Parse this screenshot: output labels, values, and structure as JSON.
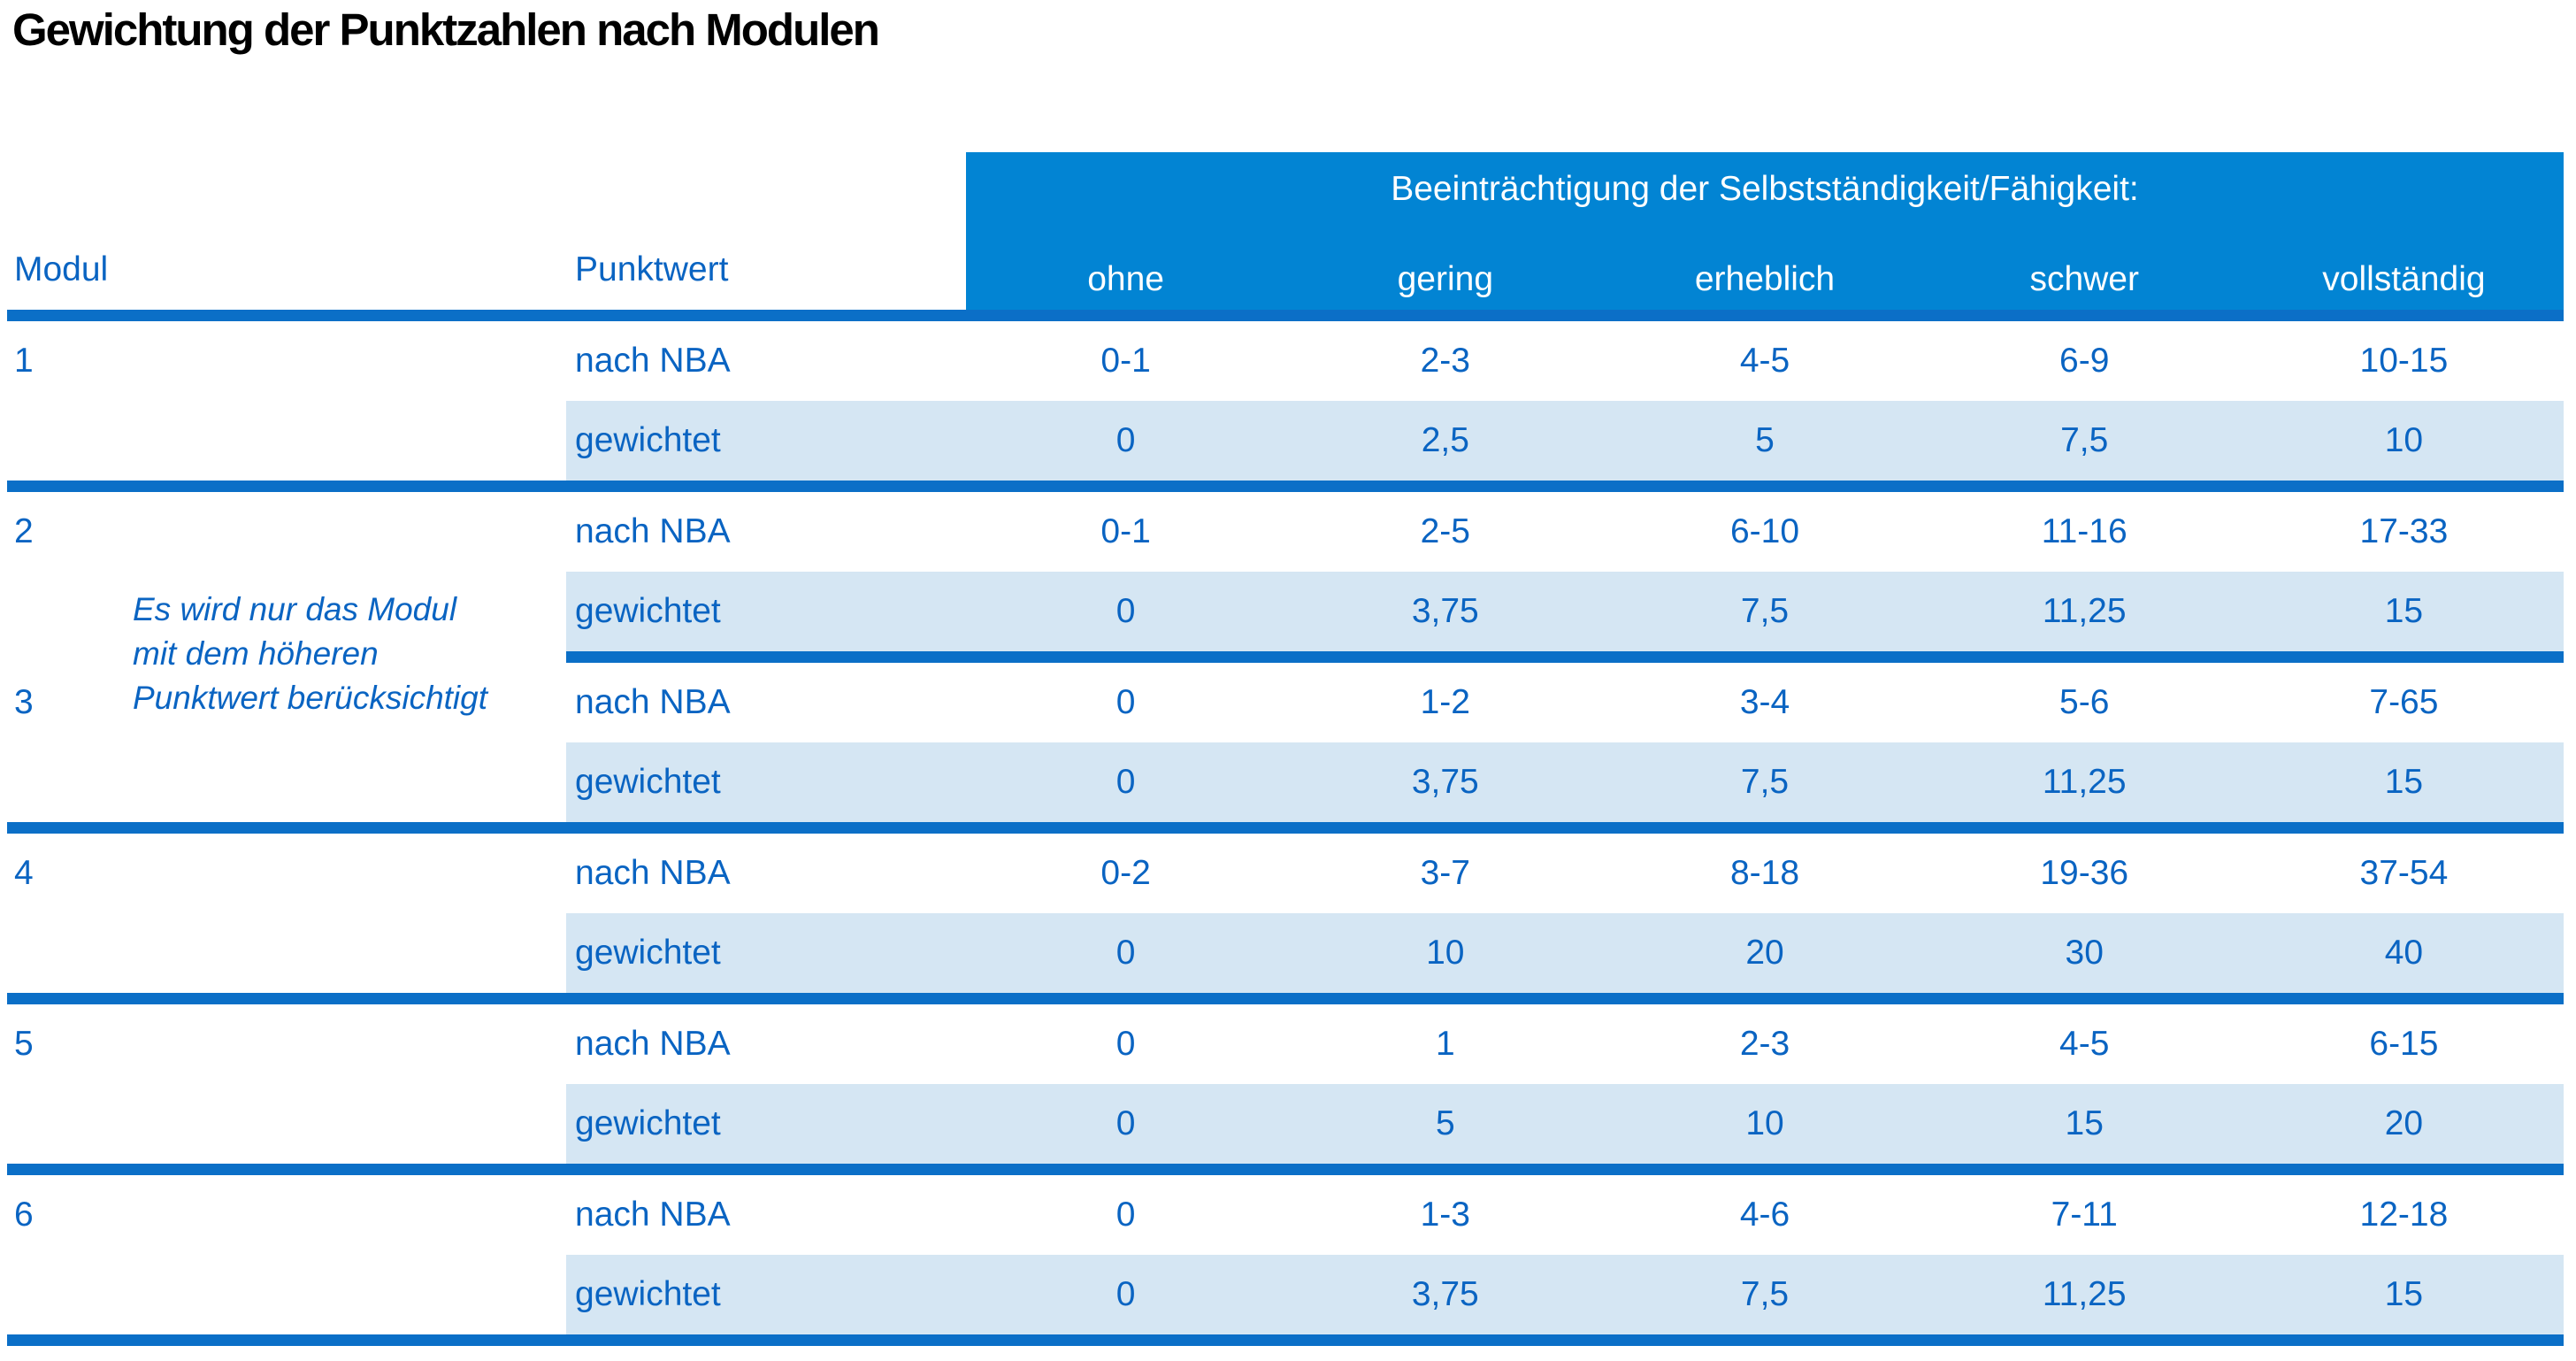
{
  "title": "Gewichtung der Punktzahlen nach Modulen",
  "colors": {
    "header_bar": "#0284d3",
    "divider": "#0b6fc7",
    "text_blue": "#0a64c2",
    "row_highlight": "#d5e6f3",
    "title": "#000000"
  },
  "table": {
    "header": {
      "modul": "Modul",
      "punktwert": "Punktwert",
      "group_label": "Beeinträchtigung der Selbstständigkeit/Fähigkeit:",
      "severity_levels": [
        "ohne",
        "gering",
        "erheblich",
        "schwer",
        "vollständig"
      ]
    },
    "row_labels": {
      "nba": "nach NBA",
      "weighted": "gewichtet"
    },
    "note": "Es wird nur das Modul\nmit dem höheren\nPunktwert berücksichtigt",
    "modules": [
      {
        "id": "1",
        "nba": [
          "0-1",
          "2-3",
          "4-5",
          "6-9",
          "10-15"
        ],
        "weighted": [
          "0",
          "2,5",
          "5",
          "7,5",
          "10"
        ]
      },
      {
        "id": "2",
        "nba": [
          "0-1",
          "2-5",
          "6-10",
          "11-16",
          "17-33"
        ],
        "weighted": [
          "0",
          "3,75",
          "7,5",
          "11,25",
          "15"
        ]
      },
      {
        "id": "3",
        "nba": [
          "0",
          "1-2",
          "3-4",
          "5-6",
          "7-65"
        ],
        "weighted": [
          "0",
          "3,75",
          "7,5",
          "11,25",
          "15"
        ]
      },
      {
        "id": "4",
        "nba": [
          "0-2",
          "3-7",
          "8-18",
          "19-36",
          "37-54"
        ],
        "weighted": [
          "0",
          "10",
          "20",
          "30",
          "40"
        ]
      },
      {
        "id": "5",
        "nba": [
          "0",
          "1",
          "2-3",
          "4-5",
          "6-15"
        ],
        "weighted": [
          "0",
          "5",
          "10",
          "15",
          "20"
        ]
      },
      {
        "id": "6",
        "nba": [
          "0",
          "1-3",
          "4-6",
          "7-11",
          "12-18"
        ],
        "weighted": [
          "0",
          "3,75",
          "7,5",
          "11,25",
          "15"
        ]
      }
    ]
  }
}
